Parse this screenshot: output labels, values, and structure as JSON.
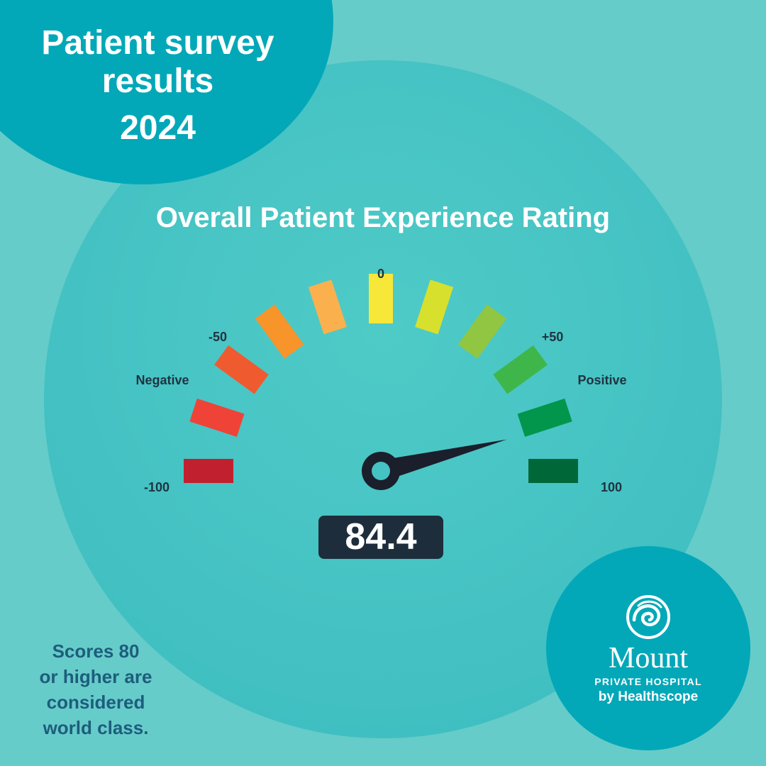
{
  "header": {
    "title_line1": "Patient survey",
    "title_line2": "results",
    "year": "2024"
  },
  "chart_data": {
    "type": "gauge",
    "title": "Overall Patient Experience Rating",
    "value": 84.4,
    "value_label": "84.4",
    "range": [
      -100,
      100
    ],
    "tick_labels": [
      {
        "value": -100,
        "label": "-100"
      },
      {
        "value": -50,
        "label": "-50"
      },
      {
        "value": 0,
        "label": "0"
      },
      {
        "value": 50,
        "label": "+50"
      },
      {
        "value": 100,
        "label": "100"
      }
    ],
    "end_labels": {
      "negative": "Negative",
      "positive": "Positive"
    },
    "segment_colors": [
      "#c1212e",
      "#ef4338",
      "#f05a2f",
      "#f7942a",
      "#fbb04e",
      "#f7e739",
      "#d7e02d",
      "#90c641",
      "#3fb64a",
      "#01964c",
      "#006838"
    ]
  },
  "note": {
    "line1": "Scores 80",
    "line2": "or higher are",
    "line3": "considered",
    "line4": "world class."
  },
  "brand": {
    "name": "Mount",
    "subtitle": "PRIVATE HOSPITAL",
    "by": "by Healthscope"
  },
  "colors": {
    "background": "#66ccc9",
    "accent_circle": "#03a8b8",
    "dial_circle": "#45c2c3",
    "score_box": "#1e2d3b",
    "note_text": "#1d5d7d"
  }
}
